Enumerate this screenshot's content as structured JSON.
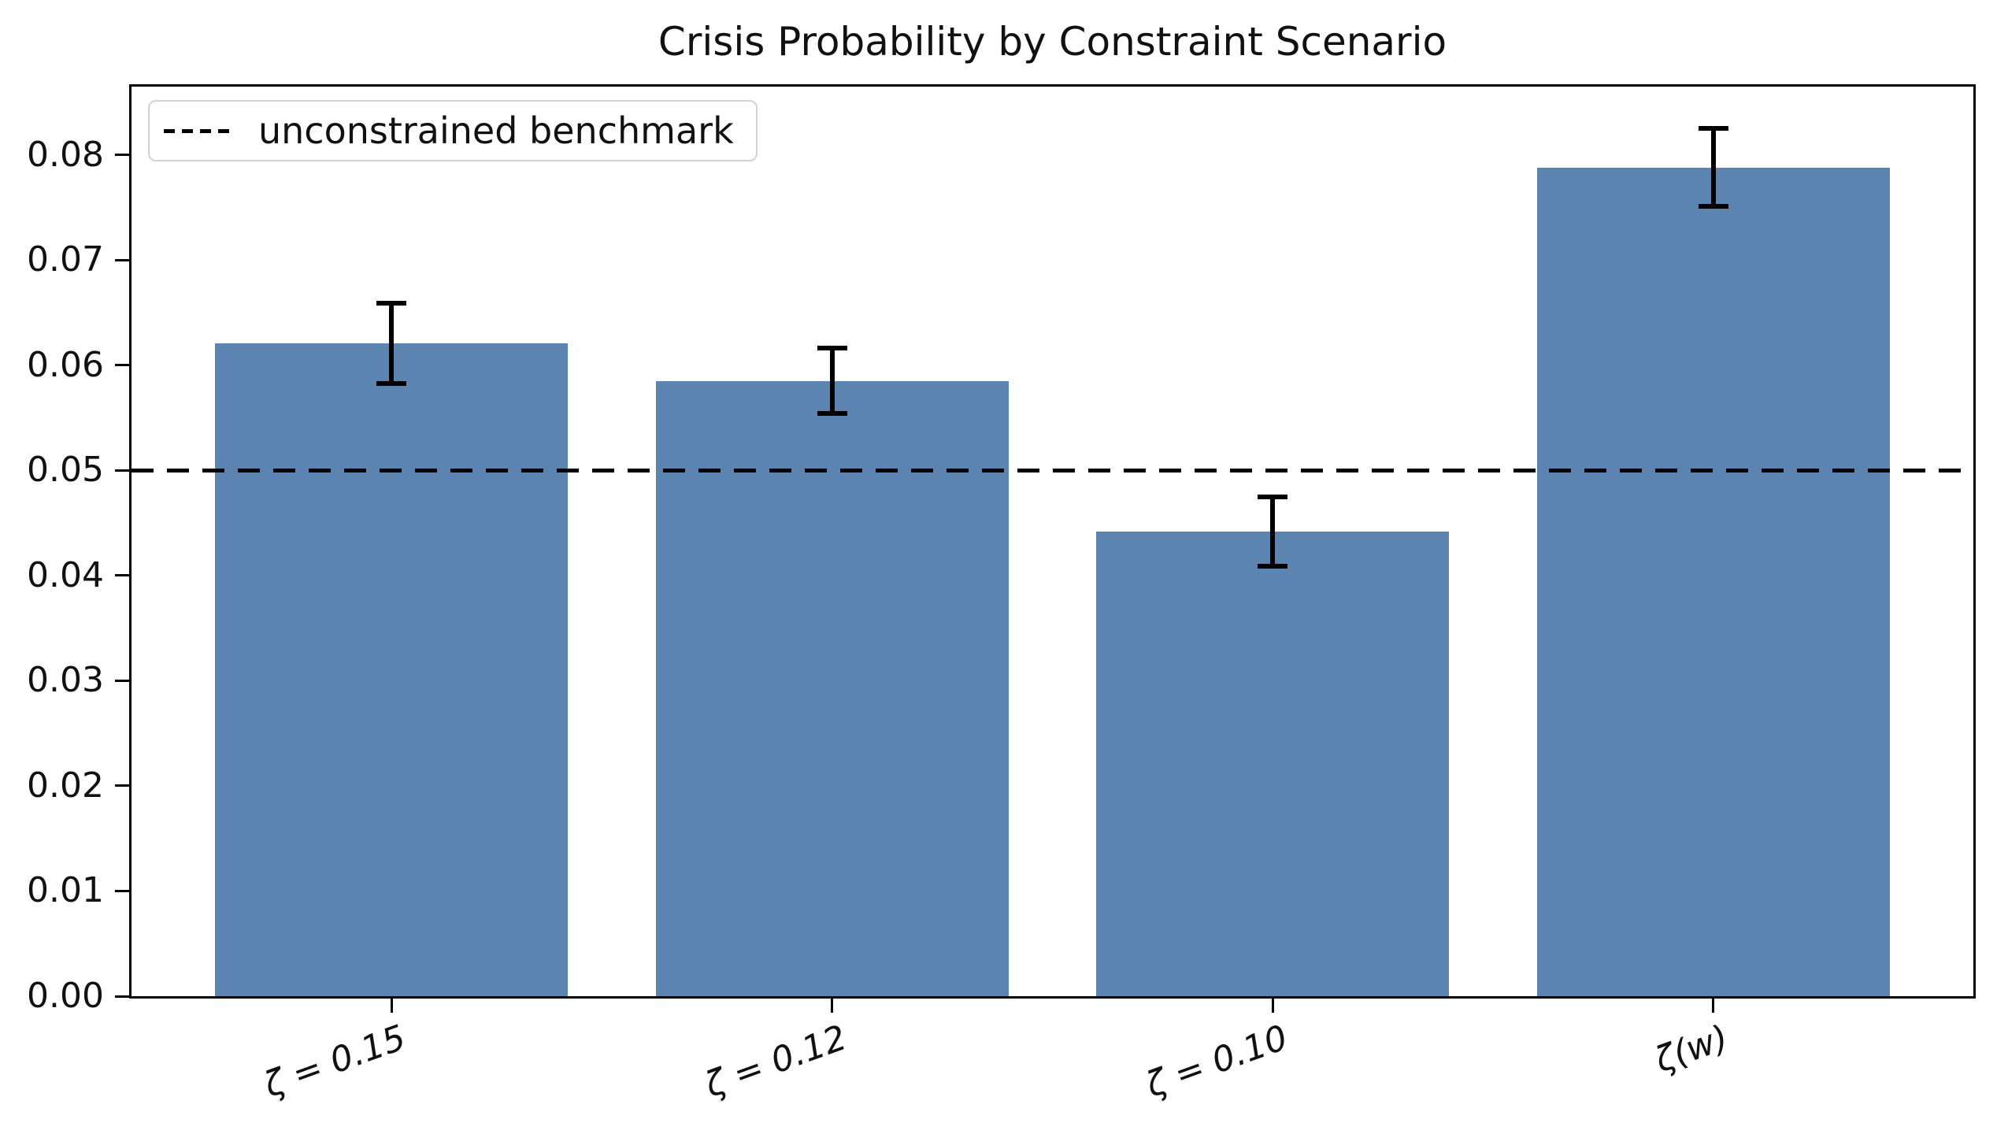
{
  "title": "Crisis Probability by Constraint Scenario",
  "legend": {
    "label": "unconstrained benchmark"
  },
  "chart_data": {
    "type": "bar",
    "title": "Crisis Probability by Constraint Scenario",
    "categories": [
      "ζ = 0.15",
      "ζ = 0.12",
      "ζ = 0.10",
      "ζ(w)"
    ],
    "values": [
      0.0621,
      0.0585,
      0.0442,
      0.0788
    ],
    "errors": [
      0.0038,
      0.0031,
      0.0033,
      0.0037
    ],
    "benchmark": {
      "label": "unconstrained benchmark",
      "value": 0.05,
      "line_style": "dashed",
      "color": "#000000"
    },
    "xlabel": "",
    "ylabel": "",
    "ylim": [
      0,
      0.0865
    ],
    "xlim": [
      -0.59,
      3.59
    ],
    "bar_width_units": 0.8,
    "yticks": [
      0.0,
      0.01,
      0.02,
      0.03,
      0.04,
      0.05,
      0.06,
      0.07,
      0.08
    ],
    "ytick_labels": [
      "0.00",
      "0.01",
      "0.02",
      "0.03",
      "0.04",
      "0.05",
      "0.06",
      "0.07",
      "0.08"
    ],
    "xtick_rotation_deg": 20,
    "bar_color": "#5b84b1",
    "error_color": "#000000",
    "legend_position": "upper left",
    "grid": false
  }
}
